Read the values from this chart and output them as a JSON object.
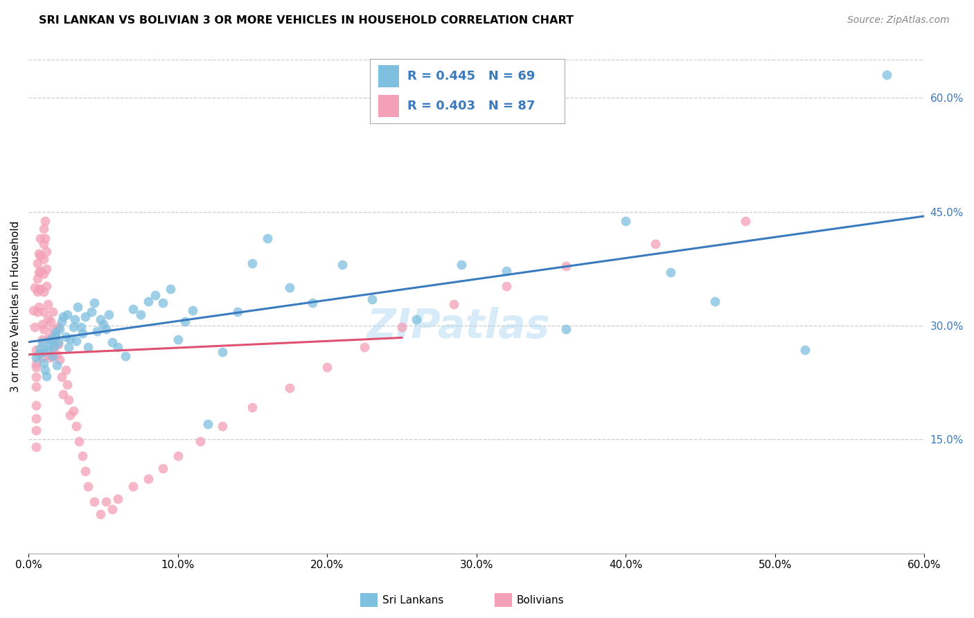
{
  "title": "SRI LANKAN VS BOLIVIAN 3 OR MORE VEHICLES IN HOUSEHOLD CORRELATION CHART",
  "source": "Source: ZipAtlas.com",
  "ylabel": "3 or more Vehicles in Household",
  "xmin": 0.0,
  "xmax": 0.6,
  "ymin": 0.0,
  "ymax": 0.65,
  "x_tick_vals": [
    0.0,
    0.1,
    0.2,
    0.3,
    0.4,
    0.5,
    0.6
  ],
  "y_tick_vals": [
    0.15,
    0.3,
    0.45,
    0.6
  ],
  "sri_lankans_color": "#7fbfdf",
  "bolivians_color": "#f4a0b8",
  "sri_lankans_line_color": "#3a7abf",
  "bolivians_line_color": "#e05070",
  "sri_lankans_R": 0.445,
  "sri_lankans_N": 69,
  "bolivians_R": 0.403,
  "bolivians_N": 87,
  "legend_color": "#3a7abf",
  "watermark": "ZIPatlas",
  "background_color": "#ffffff",
  "grid_color": "#cccccc",
  "title_fontsize": 11.5,
  "source_fontsize": 10,
  "tick_fontsize": 11,
  "ylabel_fontsize": 11,
  "legend_fontsize": 13,
  "scatter_size": 100,
  "scatter_alpha": 0.75
}
